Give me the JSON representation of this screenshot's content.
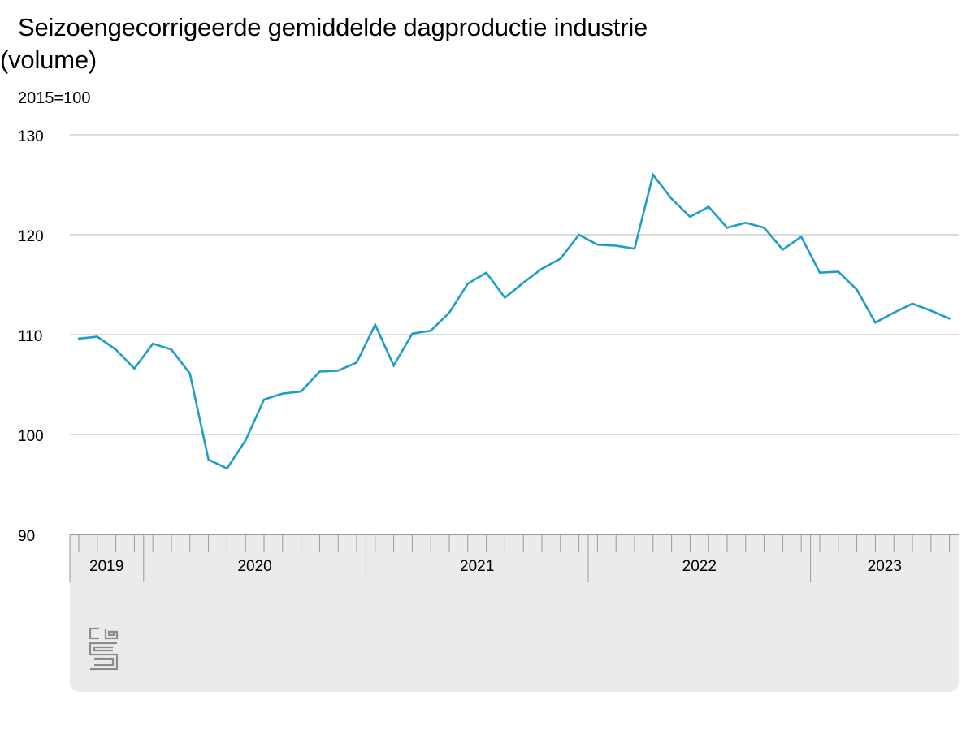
{
  "header": {
    "title_line1": "Seizoengecorrigeerde gemiddelde dagproductie industrie",
    "title_line2": "(volume)",
    "unit": "2015=100"
  },
  "colors": {
    "line": "#1f9ec5",
    "grid": "#b7b7b7",
    "axis_band": "#ebebeb",
    "tick": "#9a9a9a"
  },
  "logo": {
    "icon": "cbs-logo-icon",
    "text": "cbs"
  },
  "chart_data": {
    "type": "line",
    "title": "Seizoengecorrigeerde gemiddelde dagproductie industrie (volume)",
    "ylabel": "2015=100",
    "ylim": [
      90,
      130
    ],
    "yticks": [
      90,
      100,
      110,
      120,
      130
    ],
    "grid": true,
    "x_start": "2019-09",
    "x_end": "2023-08",
    "year_labels": [
      {
        "label": "2019",
        "from": "2019-09",
        "to": "2019-12"
      },
      {
        "label": "2020",
        "from": "2020-01",
        "to": "2020-12"
      },
      {
        "label": "2021",
        "from": "2021-01",
        "to": "2021-12"
      },
      {
        "label": "2022",
        "from": "2022-01",
        "to": "2022-12"
      },
      {
        "label": "2023",
        "from": "2023-01",
        "to": "2023-08"
      }
    ],
    "series": [
      {
        "x": [
          "2019-09",
          "2019-10",
          "2019-11",
          "2019-12",
          "2020-01",
          "2020-02",
          "2020-03",
          "2020-04",
          "2020-05",
          "2020-06",
          "2020-07",
          "2020-08",
          "2020-09",
          "2020-10",
          "2020-11",
          "2020-12",
          "2021-01",
          "2021-02",
          "2021-03",
          "2021-04",
          "2021-05",
          "2021-06",
          "2021-07",
          "2021-08",
          "2021-09",
          "2021-10",
          "2021-11",
          "2021-12",
          "2022-01",
          "2022-02",
          "2022-03",
          "2022-04",
          "2022-05",
          "2022-06",
          "2022-07",
          "2022-08",
          "2022-09",
          "2022-10",
          "2022-11",
          "2022-12",
          "2023-01",
          "2023-02",
          "2023-03",
          "2023-04",
          "2023-05",
          "2023-06",
          "2023-07",
          "2023-08"
        ],
        "values": [
          109.6,
          109.8,
          108.5,
          106.6,
          109.1,
          108.5,
          106.1,
          97.5,
          96.6,
          99.4,
          103.5,
          104.1,
          104.3,
          106.3,
          106.4,
          107.2,
          111.0,
          106.9,
          110.1,
          110.4,
          112.2,
          115.1,
          116.2,
          113.7,
          115.2,
          116.6,
          117.6,
          120.0,
          119.0,
          118.9,
          118.6,
          126.0,
          123.6,
          121.8,
          122.8,
          120.7,
          121.2,
          120.7,
          118.5,
          119.8,
          116.2,
          116.3,
          114.5,
          111.2,
          112.2,
          113.1,
          112.4,
          111.6
        ]
      }
    ]
  }
}
